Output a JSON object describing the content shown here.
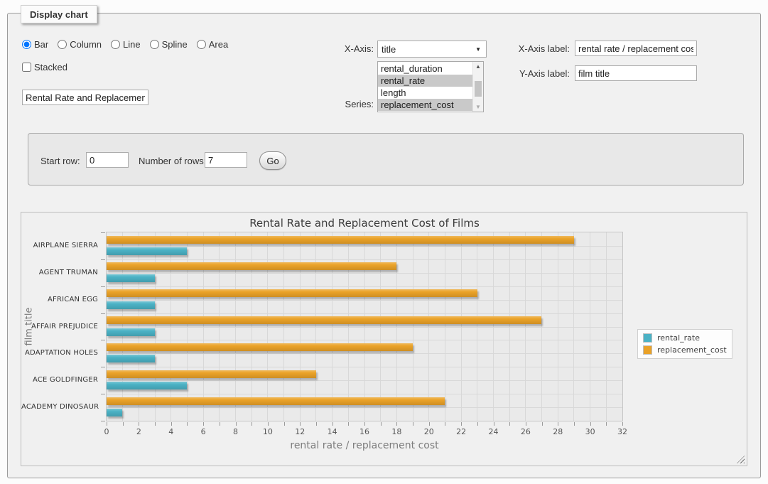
{
  "panel": {
    "legend": "Display chart"
  },
  "controls": {
    "chart_types": [
      {
        "label": "Bar",
        "selected": true
      },
      {
        "label": "Column",
        "selected": false
      },
      {
        "label": "Line",
        "selected": false
      },
      {
        "label": "Spline",
        "selected": false
      },
      {
        "label": "Area",
        "selected": false
      }
    ],
    "stacked_label": "Stacked",
    "stacked_checked": false,
    "chart_title_value": "Rental Rate and Replacement Cost of Films",
    "x_axis_caption": "X-Axis:",
    "x_axis_value": "title",
    "series_caption": "Series:",
    "series_options": [
      {
        "label": "rental_duration",
        "selected": false
      },
      {
        "label": "rental_rate",
        "selected": true
      },
      {
        "label": "length",
        "selected": false
      },
      {
        "label": "replacement_cost",
        "selected": true
      }
    ],
    "x_label_caption": "X-Axis label:",
    "x_label_value": "rental rate / replacement cost",
    "y_label_caption": "Y-Axis label:",
    "y_label_value": "film title"
  },
  "rows_panel": {
    "start_row_label": "Start row:",
    "start_row_value": "0",
    "num_rows_label": "Number of rows:",
    "num_rows_value": "7",
    "go_label": "Go"
  },
  "chart_data": {
    "type": "bar",
    "orientation": "horizontal",
    "title": "Rental Rate and Replacement Cost of Films",
    "categories": [
      "AIRPLANE SIERRA",
      "AGENT TRUMAN",
      "AFRICAN EGG",
      "AFFAIR PREJUDICE",
      "ADAPTATION HOLES",
      "ACE GOLDFINGER",
      "ACADEMY DINOSAUR"
    ],
    "series": [
      {
        "name": "rental_rate",
        "color": "#4bb2c5",
        "values": [
          4.99,
          2.99,
          2.99,
          2.99,
          2.99,
          4.99,
          0.99
        ]
      },
      {
        "name": "replacement_cost",
        "color": "#eaa228",
        "values": [
          28.99,
          17.99,
          22.99,
          26.99,
          18.99,
          12.99,
          20.99
        ]
      }
    ],
    "xlabel": "rental rate / replacement cost",
    "ylabel": "film title",
    "xlim": [
      0,
      32
    ],
    "xtick_step": 2,
    "minor_tick_step": 1,
    "grid": true,
    "legend_position": "right"
  }
}
